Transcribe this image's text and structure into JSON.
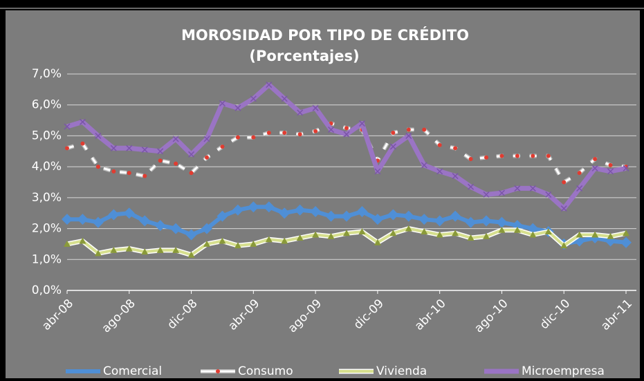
{
  "chart_data": {
    "type": "line",
    "title": "MOROSIDAD POR TIPO DE CRÉDITO",
    "subtitle": "(Porcentajes)",
    "categories": [
      "abr-08",
      null,
      null,
      null,
      "ago-08",
      null,
      null,
      null,
      "dic-08",
      null,
      null,
      null,
      "abr-09",
      null,
      null,
      null,
      "ago-09",
      null,
      null,
      null,
      "dic-09",
      null,
      null,
      null,
      "abr-10",
      null,
      null,
      null,
      "ago-10",
      null,
      null,
      null,
      "dic-10",
      null,
      null,
      null,
      "abr-11"
    ],
    "series": [
      {
        "name": "Comercial",
        "color": "#4f8fd6",
        "values": [
          2.3,
          2.3,
          2.2,
          2.45,
          2.5,
          2.25,
          2.1,
          2.0,
          1.8,
          2.0,
          2.4,
          2.6,
          2.7,
          2.7,
          2.5,
          2.6,
          2.55,
          2.4,
          2.4,
          2.55,
          2.3,
          2.45,
          2.4,
          2.3,
          2.25,
          2.4,
          2.2,
          2.25,
          2.2,
          2.1,
          2.0,
          1.9,
          1.5,
          1.6,
          1.7,
          1.6,
          1.55
        ]
      },
      {
        "name": "Consumo",
        "color": "#e03c31",
        "values": [
          4.6,
          4.75,
          4.0,
          3.85,
          3.8,
          3.7,
          4.2,
          4.1,
          3.8,
          4.3,
          4.65,
          4.95,
          4.95,
          5.1,
          5.1,
          5.05,
          5.15,
          5.4,
          5.25,
          5.2,
          4.2,
          5.1,
          5.2,
          5.2,
          4.7,
          4.6,
          4.25,
          4.3,
          4.35,
          4.35,
          4.35,
          4.35,
          3.5,
          3.8,
          4.25,
          4.05,
          4.0
        ]
      },
      {
        "name": "Vivienda",
        "color": "#d6df8e",
        "values": [
          1.5,
          1.6,
          1.2,
          1.3,
          1.35,
          1.25,
          1.3,
          1.3,
          1.15,
          1.5,
          1.6,
          1.45,
          1.5,
          1.65,
          1.6,
          1.7,
          1.8,
          1.75,
          1.85,
          1.9,
          1.55,
          1.85,
          2.0,
          1.9,
          1.8,
          1.85,
          1.7,
          1.75,
          1.95,
          1.95,
          1.8,
          1.9,
          1.45,
          1.8,
          1.8,
          1.75,
          1.85
        ]
      },
      {
        "name": "Microempresa",
        "color": "#9a74c4",
        "values": [
          5.3,
          5.45,
          5.0,
          4.6,
          4.6,
          4.55,
          4.5,
          4.9,
          4.4,
          4.9,
          6.05,
          5.9,
          6.2,
          6.65,
          6.2,
          5.75,
          5.9,
          5.2,
          5.05,
          5.4,
          3.85,
          4.65,
          5.0,
          4.05,
          3.85,
          3.7,
          3.35,
          3.1,
          3.15,
          3.3,
          3.3,
          3.1,
          2.65,
          3.3,
          3.95,
          3.85,
          3.95
        ]
      }
    ],
    "ylim": [
      0,
      7
    ],
    "yticks": [
      {
        "value": 0,
        "label": "0,0%"
      },
      {
        "value": 1,
        "label": "1,0%"
      },
      {
        "value": 2,
        "label": "2,0%"
      },
      {
        "value": 3,
        "label": "3,0%"
      },
      {
        "value": 4,
        "label": "4,0%"
      },
      {
        "value": 5,
        "label": "5,0%"
      },
      {
        "value": 6,
        "label": "6,0%"
      },
      {
        "value": 7,
        "label": "7,0%"
      }
    ],
    "grid": true
  }
}
